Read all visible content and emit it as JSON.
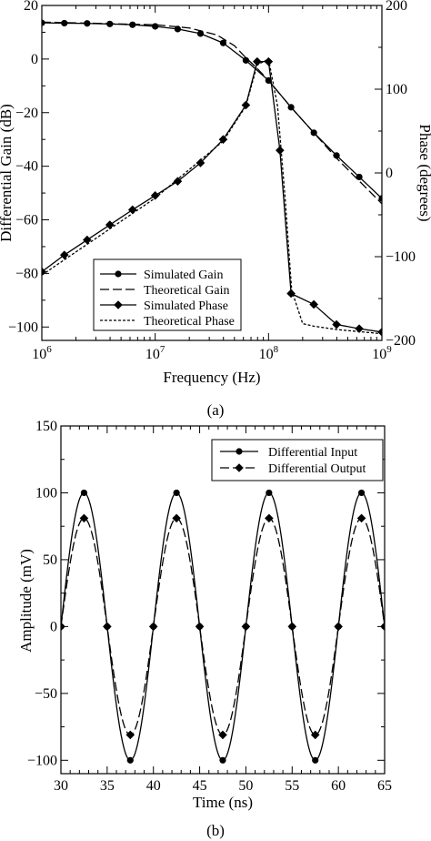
{
  "panels": {
    "a": {
      "caption": "(a)"
    },
    "b": {
      "caption": "(b)"
    }
  },
  "chart_data": [
    {
      "id": "a",
      "type": "line",
      "xlabel": "Frequency (Hz)",
      "ylabel": "Differential Gain (dB)",
      "y2label": "Phase (degrees)",
      "xscale": "log",
      "xlim": [
        1000000,
        1000000000
      ],
      "ylim": [
        -105,
        20
      ],
      "y2lim": [
        -200,
        200
      ],
      "x_ticks": [
        {
          "value": 1000000,
          "base": "10",
          "exp": "6"
        },
        {
          "value": 10000000,
          "base": "10",
          "exp": "7"
        },
        {
          "value": 100000000,
          "base": "10",
          "exp": "8"
        },
        {
          "value": 1000000000,
          "base": "10",
          "exp": "9"
        }
      ],
      "y_ticks": [
        20,
        0,
        -20,
        -40,
        -60,
        -80,
        -100
      ],
      "y2_ticks": [
        200,
        100,
        0,
        -100,
        -200
      ],
      "grid": false,
      "legend_position": "bottom-left",
      "series": [
        {
          "name": "Simulated Gain",
          "axis": "left",
          "style": "solid",
          "marker": "circle",
          "x": [
            1000000,
            1580000,
            2510000,
            3980000,
            6310000,
            10000000,
            15800000,
            25100000,
            39800000,
            63100000,
            100000000,
            158000000,
            251000000,
            398000000,
            631000000,
            1000000000
          ],
          "y": [
            13.5,
            13.4,
            13.3,
            13.1,
            12.8,
            12.2,
            11.2,
            9.5,
            6.0,
            -0.5,
            -8.0,
            -18.0,
            -27.5,
            -36.0,
            -44.0,
            -52.0
          ]
        },
        {
          "name": "Theoretical Gain",
          "axis": "left",
          "style": "dashed",
          "marker": "none",
          "x": [
            1000000,
            10000000,
            20000000,
            35000000,
            50000000,
            63100000,
            79400000,
            100000000,
            158000000,
            398000000,
            1000000000
          ],
          "y": [
            13.8,
            12.8,
            11.6,
            9.0,
            5.0,
            0.5,
            -3.5,
            -8.0,
            -18.0,
            -37.0,
            -54.0
          ]
        },
        {
          "name": "Simulated Phase",
          "axis": "right",
          "style": "solid",
          "marker": "diamond",
          "x": [
            1000000,
            1580000,
            2510000,
            3980000,
            6310000,
            10000000,
            15800000,
            25100000,
            39800000,
            63100000,
            79400000,
            100000000,
            126000000,
            158000000,
            251000000,
            398000000,
            631000000,
            1000000000
          ],
          "y": [
            -118,
            -98,
            -80,
            -62,
            -44,
            -27,
            -10,
            12,
            40,
            81,
            133,
            133,
            27,
            -144,
            -157,
            -181,
            -186,
            -190
          ]
        },
        {
          "name": "Theoretical Phase",
          "axis": "right",
          "style": "dotted",
          "marker": "none",
          "x": [
            1000000,
            10000000,
            39800000,
            63100000,
            79400000,
            100000000,
            120000000,
            140000000,
            160000000,
            200000000,
            251000000,
            398000000,
            1000000000
          ],
          "y": [
            -122,
            -30,
            38,
            80,
            129,
            136,
            80,
            -30,
            -140,
            -180,
            -183,
            -187,
            -192
          ]
        }
      ]
    },
    {
      "id": "b",
      "type": "line",
      "xlabel": "Time (ns)",
      "ylabel": "Amplitude (mV)",
      "xlim": [
        30,
        65
      ],
      "ylim": [
        -110,
        150
      ],
      "x_ticks": [
        30,
        35,
        40,
        45,
        50,
        55,
        60,
        65
      ],
      "y_ticks": [
        150,
        100,
        50,
        0,
        -50,
        -100
      ],
      "grid": false,
      "legend_position": "top-right",
      "series": [
        {
          "name": "Differential Input",
          "style": "solid",
          "marker": "circle",
          "amplitude": 100,
          "period_ns": 10,
          "phase_ns": 30,
          "marker_x": [
            30,
            32.5,
            35,
            37.5,
            40,
            42.5,
            45,
            47.5,
            50,
            52.5,
            55,
            57.5,
            60,
            62.5,
            65
          ],
          "marker_y": [
            0,
            100,
            0,
            -100,
            0,
            100,
            0,
            -100,
            0,
            100,
            0,
            -100,
            0,
            100,
            0
          ]
        },
        {
          "name": "Differential Output",
          "style": "dashed",
          "marker": "diamond",
          "amplitude": 81,
          "period_ns": 10,
          "phase_ns": 30,
          "marker_x": [
            30,
            32.5,
            35,
            37.5,
            40,
            42.5,
            45,
            47.5,
            50,
            52.5,
            55,
            57.5,
            60,
            62.5,
            65
          ],
          "marker_y": [
            0,
            81,
            0,
            -81,
            0,
            81,
            0,
            -81,
            0,
            81,
            0,
            -81,
            0,
            81,
            0
          ]
        }
      ]
    }
  ]
}
